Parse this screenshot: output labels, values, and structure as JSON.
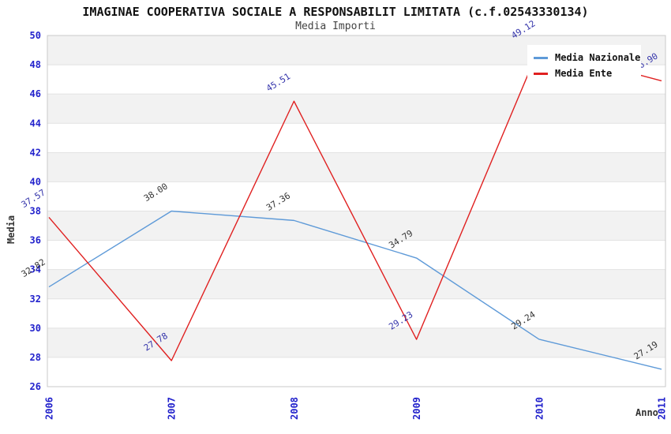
{
  "chart_data": {
    "type": "line",
    "title": "IMAGINAE COOPERATIVA SOCIALE A RESPONSABILIT LIMITATA (c.f.02543330134)",
    "subtitle": "Media Importi",
    "xlabel": "Anno",
    "ylabel": "Media",
    "categories": [
      "2006",
      "2007",
      "2008",
      "2009",
      "2010",
      "2011"
    ],
    "ylim": [
      26,
      50
    ],
    "ytick_step": 2,
    "yticks": [
      26,
      28,
      30,
      32,
      34,
      36,
      38,
      40,
      42,
      44,
      46,
      48,
      50
    ],
    "grid": "horizontal gridlines with alternating gray/white bands",
    "legend_position": "top-right",
    "series": [
      {
        "name": "Media Nazionale",
        "color": "#5e9ad8",
        "label_color": "#333333",
        "values": [
          32.82,
          38.0,
          37.36,
          34.79,
          29.24,
          27.19
        ]
      },
      {
        "name": "Media Ente",
        "color": "#e02020",
        "label_color": "#3333aa",
        "values": [
          37.57,
          27.78,
          45.51,
          29.23,
          49.12,
          46.9
        ]
      }
    ],
    "axis_tick_color": "#2222cc",
    "band_color": "#f2f2f2",
    "grid_color": "#e2e2e2",
    "border_color": "#c9c9c9"
  }
}
